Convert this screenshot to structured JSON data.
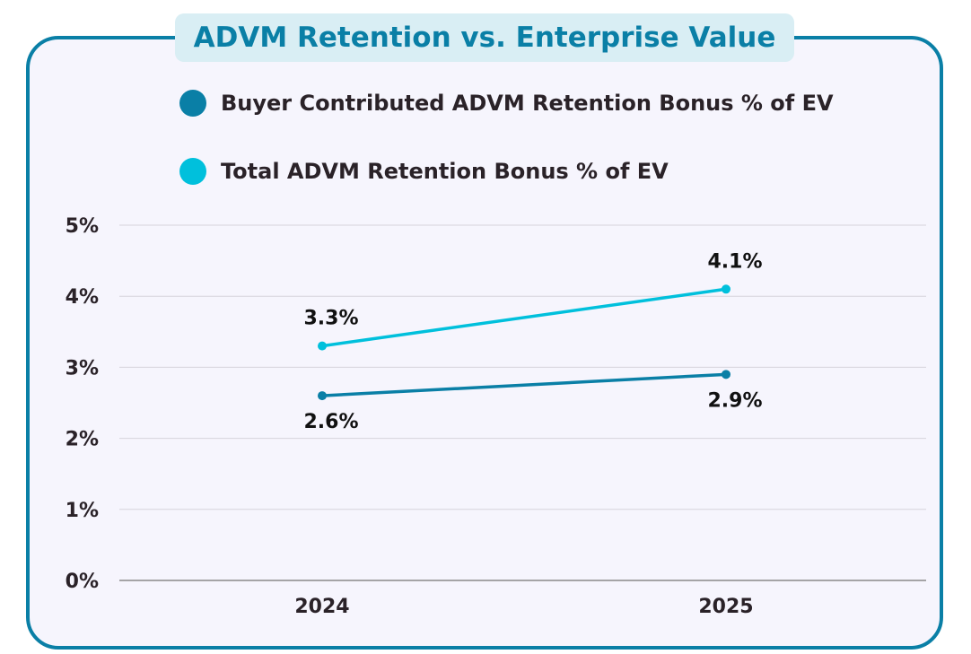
{
  "chart_data": {
    "type": "line",
    "title": "ADVM Retention vs. Enterprise Value",
    "categories": [
      "2024",
      "2025"
    ],
    "series": [
      {
        "name": "Buyer Contributed ADVM Retention Bonus % of EV",
        "values": [
          2.6,
          2.9
        ],
        "labels": [
          "2.6%",
          "2.9%"
        ],
        "color": "#0a7fa6",
        "label_position": "below"
      },
      {
        "name": "Total ADVM Retention Bonus % of EV",
        "values": [
          3.3,
          4.1
        ],
        "labels": [
          "3.3%",
          "4.1%"
        ],
        "color": "#00c0dc",
        "label_position": "above"
      }
    ],
    "ylim": [
      0,
      5
    ],
    "yticks": [
      "0%",
      "1%",
      "2%",
      "3%",
      "4%",
      "5%"
    ],
    "grid": true,
    "legend": "top"
  }
}
